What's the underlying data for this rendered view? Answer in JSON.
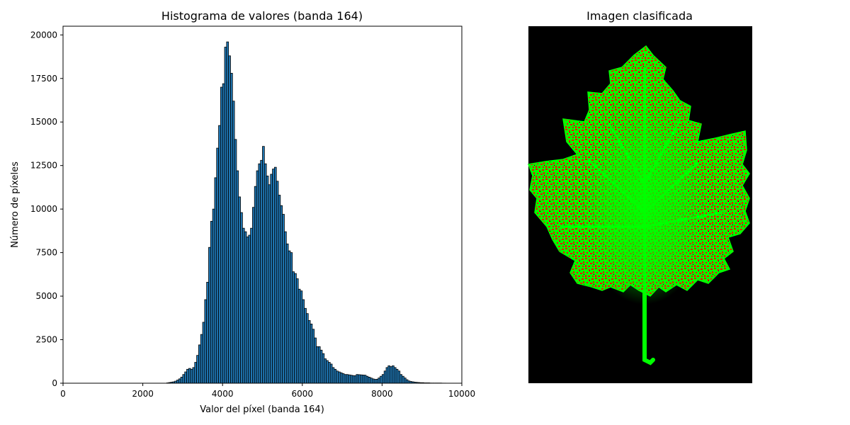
{
  "chart_data": [
    {
      "type": "bar",
      "title": "Histograma de valores (banda 164)",
      "xlabel": "Valor del píxel (banda 164)",
      "ylabel": "Número de píxeles",
      "xlim": [
        0,
        10000
      ],
      "ylim": [
        0,
        20500
      ],
      "xticks": [
        0,
        2000,
        4000,
        6000,
        8000,
        10000
      ],
      "yticks": [
        0,
        2500,
        5000,
        7500,
        10000,
        12500,
        15000,
        17500,
        20000
      ],
      "grid": false,
      "bar_color": "#1f77b4",
      "edge_color": "#000000",
      "bin_width": 50,
      "bin_starts": [
        2600,
        2650,
        2700,
        2750,
        2800,
        2850,
        2900,
        2950,
        3000,
        3050,
        3100,
        3150,
        3200,
        3250,
        3300,
        3350,
        3400,
        3450,
        3500,
        3550,
        3600,
        3650,
        3700,
        3750,
        3800,
        3850,
        3900,
        3950,
        4000,
        4050,
        4100,
        4150,
        4200,
        4250,
        4300,
        4350,
        4400,
        4450,
        4500,
        4550,
        4600,
        4650,
        4700,
        4750,
        4800,
        4850,
        4900,
        4950,
        5000,
        5050,
        5100,
        5150,
        5200,
        5250,
        5300,
        5350,
        5400,
        5450,
        5500,
        5550,
        5600,
        5650,
        5700,
        5750,
        5800,
        5850,
        5900,
        5950,
        6000,
        6050,
        6100,
        6150,
        6200,
        6250,
        6300,
        6350,
        6400,
        6450,
        6500,
        6550,
        6600,
        6650,
        6700,
        6750,
        6800,
        6850,
        6900,
        6950,
        7000,
        7050,
        7100,
        7150,
        7200,
        7250,
        7300,
        7350,
        7400,
        7450,
        7500,
        7550,
        7600,
        7650,
        7700,
        7750,
        7800,
        7850,
        7900,
        7950,
        8000,
        8050,
        8100,
        8150,
        8200,
        8250,
        8300,
        8350,
        8400,
        8450,
        8500,
        8550,
        8600,
        8650,
        8700,
        8750,
        8800,
        8850,
        8900,
        8950,
        9000,
        9050,
        9100,
        9150,
        9200,
        9250,
        9300,
        9350,
        9400,
        9450,
        9500,
        9550
      ],
      "values": [
        20,
        40,
        60,
        80,
        120,
        180,
        250,
        350,
        500,
        650,
        800,
        850,
        800,
        900,
        1200,
        1600,
        2200,
        2800,
        3500,
        4800,
        5800,
        7800,
        9300,
        10000,
        11800,
        13500,
        14800,
        17000,
        17200,
        19300,
        19600,
        18800,
        17800,
        16200,
        14000,
        12200,
        10700,
        9800,
        8900,
        8700,
        8400,
        8500,
        8900,
        10100,
        11300,
        12200,
        12600,
        12800,
        13600,
        12600,
        11900,
        11400,
        12000,
        12300,
        12400,
        11600,
        10800,
        10200,
        9700,
        8700,
        8000,
        7600,
        7500,
        6400,
        6300,
        6000,
        5400,
        5300,
        4800,
        4300,
        4000,
        3600,
        3400,
        3100,
        2600,
        2100,
        2100,
        1900,
        1700,
        1400,
        1300,
        1200,
        1100,
        900,
        800,
        700,
        650,
        600,
        550,
        500,
        500,
        480,
        460,
        440,
        430,
        500,
        490,
        480,
        470,
        460,
        400,
        350,
        300,
        250,
        220,
        230,
        300,
        400,
        500,
        700,
        900,
        1000,
        950,
        1000,
        900,
        800,
        700,
        500,
        400,
        300,
        200,
        130,
        100,
        80,
        60,
        50,
        40,
        30,
        30,
        20,
        20,
        20,
        10,
        10,
        10,
        10,
        10,
        10,
        5,
        5
      ]
    }
  ],
  "panel2": {
    "title": "Imagen clasificada",
    "background_color": "#000000",
    "class_colors": [
      "#00ff00",
      "#ff0000"
    ]
  }
}
